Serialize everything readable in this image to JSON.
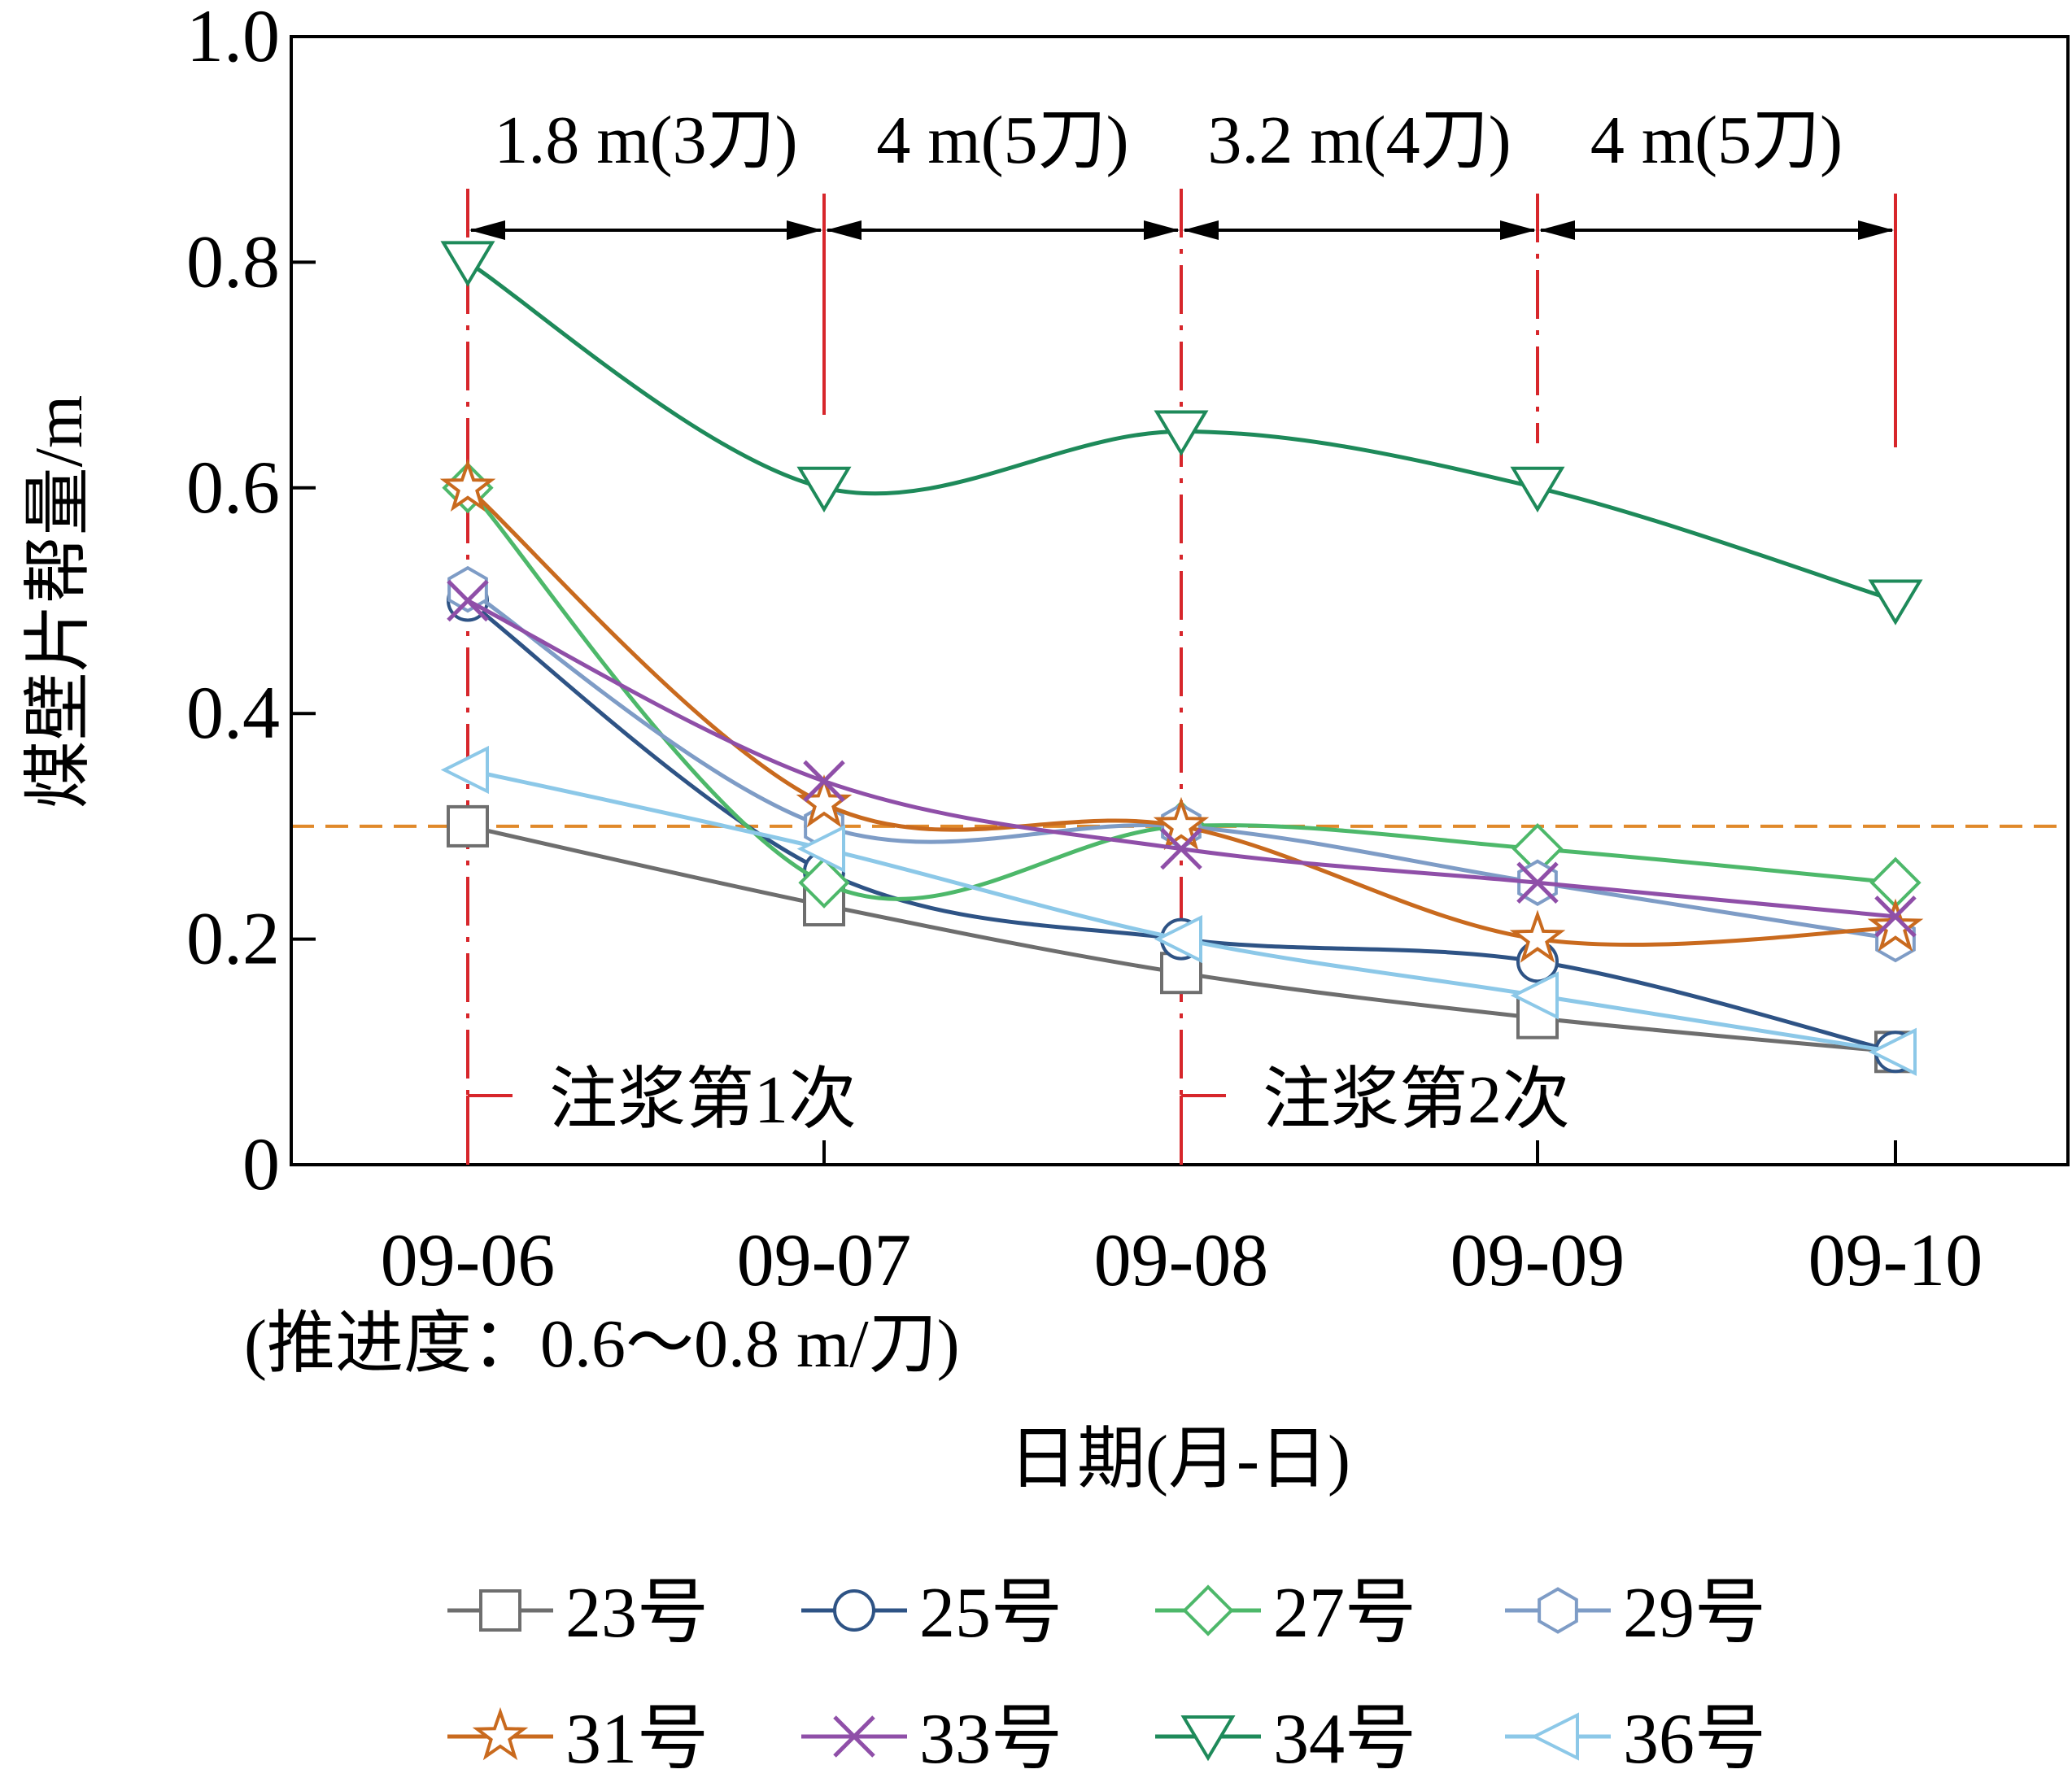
{
  "chart_data": {
    "type": "line",
    "title": "",
    "xlabel": "日期(月-日)",
    "x_note": "(推进度：0.6～0.8 m/刀)",
    "ylabel": "煤壁片帮量/m",
    "categories": [
      "09-06",
      "09-07",
      "09-08",
      "09-09",
      "09-10"
    ],
    "y_ticks": [
      "0",
      "0.2",
      "0.4",
      "0.6",
      "0.8",
      "1.0"
    ],
    "ylim": [
      0,
      1.0
    ],
    "grid": false,
    "legend_position": "bottom",
    "reference_line": {
      "y": 0.3,
      "color": "#E0892A"
    },
    "segments": [
      {
        "from": "09-06",
        "to": "09-07",
        "label": "1.8 m(3刀)"
      },
      {
        "from": "09-07",
        "to": "09-08",
        "label": "4 m(5刀)"
      },
      {
        "from": "09-08",
        "to": "09-09",
        "label": "3.2 m(4刀)"
      },
      {
        "from": "09-09",
        "to": "09-10",
        "label": "4 m(5刀)"
      }
    ],
    "grouting": [
      {
        "at": "09-06",
        "label": "注浆第1次"
      },
      {
        "at": "09-08",
        "label": "注浆第2次"
      }
    ],
    "series": [
      {
        "name": "23号",
        "marker": "square",
        "color": "#6E6E6E",
        "values": [
          0.3,
          0.23,
          0.17,
          0.13,
          0.1
        ]
      },
      {
        "name": "25号",
        "marker": "circle",
        "color": "#2E5385",
        "values": [
          0.5,
          0.26,
          0.2,
          0.18,
          0.1
        ]
      },
      {
        "name": "27号",
        "marker": "diamond",
        "color": "#4DB86A",
        "values": [
          0.6,
          0.25,
          0.3,
          0.28,
          0.25
        ]
      },
      {
        "name": "29号",
        "marker": "hexagon",
        "color": "#7E9CC6",
        "values": [
          0.51,
          0.3,
          0.3,
          0.25,
          0.2
        ]
      },
      {
        "name": "31号",
        "marker": "star",
        "color": "#C96A1E",
        "values": [
          0.6,
          0.32,
          0.3,
          0.2,
          0.21
        ]
      },
      {
        "name": "33号",
        "marker": "x",
        "color": "#8F4FA8",
        "values": [
          0.5,
          0.34,
          0.28,
          0.25,
          0.22
        ]
      },
      {
        "name": "34号",
        "marker": "triangle-down",
        "color": "#1E8A5A",
        "values": [
          0.8,
          0.6,
          0.65,
          0.6,
          0.5
        ]
      },
      {
        "name": "36号",
        "marker": "triangle-left",
        "color": "#8CC8E8",
        "values": [
          0.35,
          0.28,
          0.2,
          0.15,
          0.1
        ]
      }
    ]
  }
}
